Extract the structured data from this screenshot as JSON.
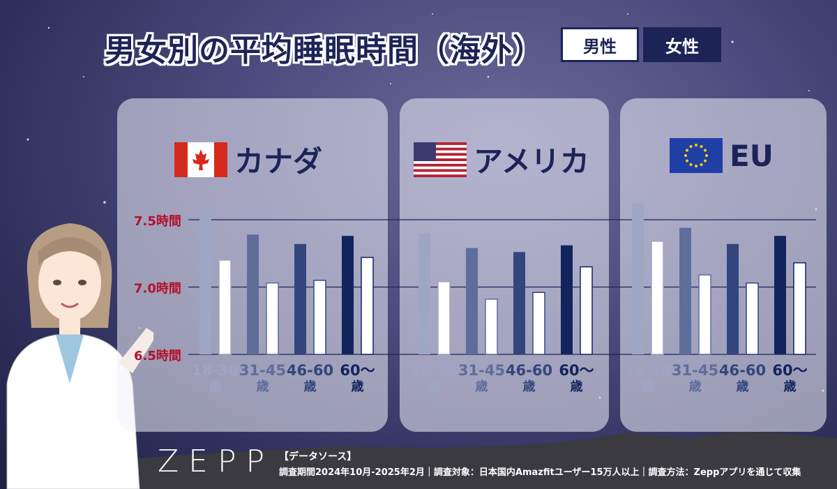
{
  "title": "男女別の平均睡眠時間（海外）",
  "legend": {
    "male": "男性",
    "female": "女性"
  },
  "brand": "ZEPP",
  "source": {
    "heading": "【データソース】",
    "detail": "調査期間2024年10月-2025年2月｜調査対象：日本国内Amazfitユーザー15万人以上｜調査方法：Zeppアプリを通じて収集"
  },
  "colors": {
    "navy": "#1c2457",
    "tick_label": "#b4102a",
    "age_colors": [
      "#9ea6c4",
      "#5f6d9b",
      "#33457c",
      "#13245c"
    ]
  },
  "chart_data": {
    "type": "bar",
    "unit": "時間",
    "ylim": [
      6.5,
      7.5
    ],
    "yticks": [
      {
        "value": 7.5,
        "label": "7.5時間"
      },
      {
        "value": 7.0,
        "label": "7.0時間"
      },
      {
        "value": 6.5,
        "label": "6.5時間"
      }
    ],
    "grid": true,
    "series_names": [
      "男性",
      "女性"
    ],
    "panels": [
      {
        "country": "カナダ",
        "flag": "canada",
        "categories": [
          {
            "line1": "18-30",
            "line2": "歳"
          },
          {
            "line1": "31-45",
            "line2": "歳"
          },
          {
            "line1": "46-60",
            "line2": "歳"
          },
          {
            "line1": "60～",
            "line2": "歳"
          }
        ],
        "male": [
          7.57,
          7.39,
          7.32,
          7.38
        ],
        "female": [
          7.2,
          7.03,
          7.05,
          7.22
        ]
      },
      {
        "country": "アメリカ",
        "flag": "usa",
        "categories": [
          {
            "line1": "18-30",
            "line2": "歳"
          },
          {
            "line1": "31-45",
            "line2": "歳"
          },
          {
            "line1": "46-60",
            "line2": "歳"
          },
          {
            "line1": "60～",
            "line2": "歳"
          }
        ],
        "male": [
          7.4,
          7.29,
          7.26,
          7.31
        ],
        "female": [
          7.04,
          6.91,
          6.96,
          7.15
        ]
      },
      {
        "country": "EU",
        "flag": "eu",
        "categories": [
          {
            "line1": "18-30",
            "line2": "歳"
          },
          {
            "line1": "31-45",
            "line2": "歳"
          },
          {
            "line1": "46-60",
            "line2": "歳"
          },
          {
            "line1": "60～",
            "line2": "歳"
          }
        ],
        "male": [
          7.62,
          7.44,
          7.32,
          7.38
        ],
        "female": [
          7.34,
          7.09,
          7.03,
          7.18
        ]
      }
    ]
  }
}
